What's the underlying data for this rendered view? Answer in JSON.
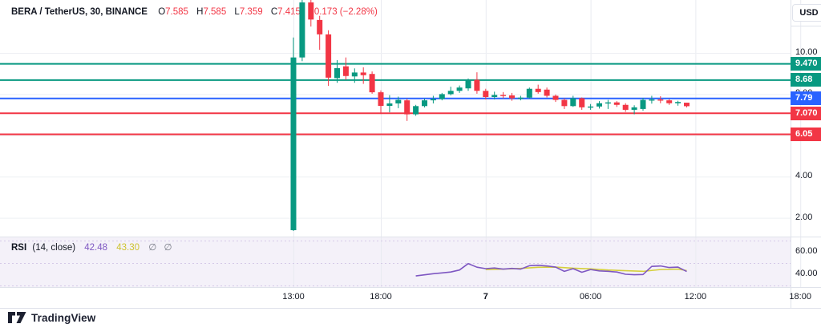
{
  "header": {
    "title": "BERA / TetherUS, 30, BINANCE",
    "ohlc": [
      {
        "label": "O",
        "value": "7.585"
      },
      {
        "label": "H",
        "value": "7.585"
      },
      {
        "label": "L",
        "value": "7.359"
      },
      {
        "label": "C",
        "value": "7.415"
      }
    ],
    "change": "−0.173 (−2.28%)"
  },
  "price_axis": {
    "currency_label": "USD"
  },
  "rsi_legend": {
    "title": "RSI",
    "params": "(14, close)",
    "value": "42.48",
    "ma_value": "43.30",
    "empty1": "∅",
    "empty2": "∅"
  },
  "footer": {
    "brand": "TradingView"
  },
  "colors": {
    "up": "#089981",
    "down": "#f23645",
    "blue": "#2962ff",
    "grid": "#eef0f4",
    "separator": "#e0e3eb",
    "axis_text": "#131722",
    "rsi_bg": "#f4f1f9",
    "rsi_guide": "#d5c9e8",
    "rsi_line": "#7e57c2",
    "rsi_ma": "#d5cf3c"
  },
  "chart_data": [
    {
      "type": "candlestick",
      "pane": "price",
      "interval": "30",
      "x_start": "13:00",
      "x_step_minutes": 30,
      "ylim": [
        1.0,
        12.6
      ],
      "y_axis_gridlines": [
        {
          "price": 10,
          "label": "10.00"
        },
        {
          "price": 8,
          "label": "8.00"
        },
        {
          "price": 6,
          "label": "6.00"
        },
        {
          "price": 4,
          "label": "4.00"
        },
        {
          "price": 2,
          "label": "2.00"
        }
      ],
      "levels": [
        {
          "price": 9.47,
          "label": "9.470",
          "color": "#089981"
        },
        {
          "price": 8.68,
          "label": "8.68",
          "color": "#089981"
        },
        {
          "price": 7.79,
          "label": "7.79",
          "color": "#2962ff"
        },
        {
          "price": 7.07,
          "label": "7.070",
          "color": "#f23645"
        },
        {
          "price": 6.05,
          "label": "6.05",
          "color": "#f23645"
        }
      ],
      "x_axis_labels": [
        {
          "slot": 0,
          "text": "13:00",
          "bold": false
        },
        {
          "slot": 10,
          "text": "18:00",
          "bold": false
        },
        {
          "slot": 22,
          "text": "7",
          "bold": true
        },
        {
          "slot": 34,
          "text": "06:00",
          "bold": false
        },
        {
          "slot": 46,
          "text": "12:00",
          "bold": false
        },
        {
          "slot": 58,
          "text": "18:00",
          "bold": false
        }
      ],
      "candles_ohlc": [
        [
          1.4,
          10.75,
          1.36,
          9.78
        ],
        [
          9.78,
          12.7,
          9.6,
          12.45
        ],
        [
          12.45,
          12.6,
          11.28,
          11.62
        ],
        [
          11.6,
          11.8,
          10.15,
          10.9
        ],
        [
          10.9,
          11.1,
          8.4,
          8.8
        ],
        [
          8.78,
          9.65,
          8.55,
          9.26
        ],
        [
          9.35,
          9.78,
          8.7,
          8.88
        ],
        [
          8.86,
          9.25,
          8.55,
          9.05
        ],
        [
          9.05,
          9.3,
          8.5,
          8.92
        ],
        [
          8.98,
          9.1,
          8.02,
          8.09
        ],
        [
          8.09,
          8.18,
          7.04,
          7.43
        ],
        [
          7.43,
          7.95,
          7.12,
          7.55
        ],
        [
          7.55,
          7.88,
          7.32,
          7.72
        ],
        [
          7.7,
          7.78,
          6.7,
          7.02
        ],
        [
          7.02,
          7.48,
          6.95,
          7.42
        ],
        [
          7.42,
          7.78,
          7.36,
          7.7
        ],
        [
          7.7,
          7.92,
          7.55,
          7.76
        ],
        [
          7.76,
          8.06,
          7.7,
          8.0
        ],
        [
          8.0,
          8.36,
          7.94,
          8.16
        ],
        [
          8.16,
          8.42,
          8.06,
          8.32
        ],
        [
          8.28,
          8.76,
          8.16,
          8.7
        ],
        [
          8.7,
          9.06,
          8.02,
          8.16
        ],
        [
          8.16,
          8.26,
          7.74,
          7.86
        ],
        [
          7.86,
          8.12,
          7.74,
          7.96
        ],
        [
          7.96,
          8.1,
          7.8,
          7.94
        ],
        [
          7.94,
          8.06,
          7.68,
          7.8
        ],
        [
          7.8,
          7.92,
          7.7,
          7.83
        ],
        [
          7.83,
          8.32,
          7.78,
          8.26
        ],
        [
          8.26,
          8.46,
          8.02,
          8.1
        ],
        [
          8.22,
          8.32,
          7.84,
          7.92
        ],
        [
          7.92,
          7.98,
          7.62,
          7.72
        ],
        [
          7.72,
          7.8,
          7.28,
          7.42
        ],
        [
          7.42,
          7.92,
          7.38,
          7.8
        ],
        [
          7.8,
          7.84,
          7.24,
          7.36
        ],
        [
          7.36,
          7.52,
          7.24,
          7.4
        ],
        [
          7.4,
          7.66,
          7.3,
          7.56
        ],
        [
          7.56,
          7.72,
          7.28,
          7.6
        ],
        [
          7.6,
          7.66,
          7.38,
          7.48
        ],
        [
          7.48,
          7.56,
          7.14,
          7.24
        ],
        [
          7.24,
          7.46,
          7.02,
          7.36
        ],
        [
          7.28,
          7.82,
          7.2,
          7.72
        ],
        [
          7.72,
          7.92,
          7.54,
          7.74
        ],
        [
          7.74,
          7.9,
          7.56,
          7.7
        ],
        [
          7.7,
          7.76,
          7.48,
          7.56
        ],
        [
          7.56,
          7.68,
          7.44,
          7.62
        ],
        [
          7.585,
          7.585,
          7.359,
          7.415
        ]
      ]
    },
    {
      "type": "line",
      "pane": "rsi",
      "guides": [
        70,
        50,
        30
      ],
      "y_axis_labels": [
        {
          "value": 60,
          "text": "60.00"
        },
        {
          "value": 40,
          "text": "40.00"
        }
      ],
      "series": [
        {
          "name": "RSI-based MA",
          "color": "#d5cf3c",
          "points": [
            [
              22,
              44.2
            ],
            [
              24,
              44.6
            ],
            [
              26,
              45.2
            ],
            [
              28,
              46.2
            ],
            [
              30,
              46.4
            ],
            [
              32,
              45.4
            ],
            [
              34,
              44.8
            ],
            [
              36,
              43.8
            ],
            [
              38,
              43.2
            ],
            [
              40,
              42.6
            ],
            [
              42,
              44.2
            ],
            [
              44,
              44.6
            ],
            [
              45,
              43.3
            ]
          ]
        },
        {
          "name": "RSI",
          "color": "#7e57c2",
          "points": [
            [
              14,
              38.5
            ],
            [
              15,
              39.5
            ],
            [
              16,
              40.5
            ],
            [
              17,
              41.2
            ],
            [
              18,
              42.0
            ],
            [
              19,
              43.8
            ],
            [
              20,
              49.5
            ],
            [
              21,
              46.3
            ],
            [
              22,
              45.0
            ],
            [
              23,
              45.6
            ],
            [
              24,
              44.6
            ],
            [
              25,
              45.2
            ],
            [
              26,
              44.6
            ],
            [
              27,
              47.6
            ],
            [
              28,
              48.0
            ],
            [
              29,
              47.4
            ],
            [
              30,
              46.4
            ],
            [
              31,
              42.6
            ],
            [
              32,
              45.0
            ],
            [
              33,
              41.8
            ],
            [
              34,
              44.2
            ],
            [
              35,
              43.0
            ],
            [
              36,
              42.6
            ],
            [
              37,
              42.0
            ],
            [
              38,
              40.0
            ],
            [
              39,
              39.6
            ],
            [
              40,
              39.8
            ],
            [
              41,
              47.0
            ],
            [
              42,
              47.4
            ],
            [
              43,
              46.0
            ],
            [
              44,
              46.4
            ],
            [
              45,
              42.48
            ]
          ]
        }
      ]
    }
  ]
}
